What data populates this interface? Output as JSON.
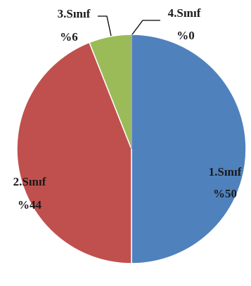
{
  "chart_data": {
    "type": "pie",
    "title": "",
    "slices": [
      {
        "label": "1.Sınıf",
        "value_label": "%50",
        "value": 50,
        "color": "#4F81BD"
      },
      {
        "label": "2.Sınıf",
        "value_label": "%44",
        "value": 44,
        "color": "#C0504D"
      },
      {
        "label": "3.Sınıf",
        "value_label": "%6",
        "value": 6,
        "color": "#9BBB59"
      },
      {
        "label": "4.Sınıf",
        "value_label": "%0",
        "value": 0,
        "color": "#8064A2"
      }
    ],
    "start_angle": "12 o'clock",
    "direction": "clockwise",
    "legend": "none"
  }
}
